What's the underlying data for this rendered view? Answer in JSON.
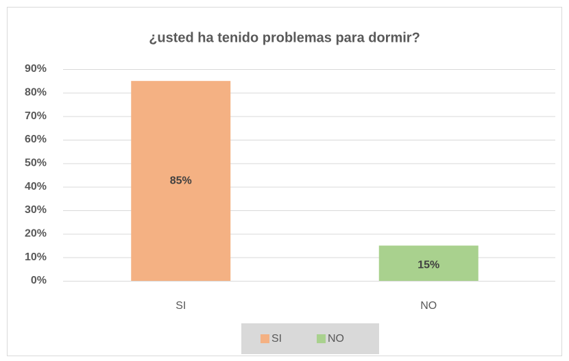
{
  "chart_data": {
    "type": "bar",
    "title": "¿usted ha tenido problemas para dormir?",
    "categories": [
      "SI",
      "NO"
    ],
    "values": [
      85,
      15
    ],
    "value_labels": [
      "85%",
      "15%"
    ],
    "colors": [
      "#f4b183",
      "#a9d18e"
    ],
    "ylim": [
      0,
      90
    ],
    "yticks": [
      {
        "value": 0,
        "label": "0%"
      },
      {
        "value": 10,
        "label": "10%"
      },
      {
        "value": 20,
        "label": "20%"
      },
      {
        "value": 30,
        "label": "30%"
      },
      {
        "value": 40,
        "label": "40%"
      },
      {
        "value": 50,
        "label": "50%"
      },
      {
        "value": 60,
        "label": "60%"
      },
      {
        "value": 70,
        "label": "70%"
      },
      {
        "value": 80,
        "label": "80%"
      },
      {
        "value": 90,
        "label": "90%"
      }
    ],
    "grid": true,
    "legend": "bottom"
  }
}
